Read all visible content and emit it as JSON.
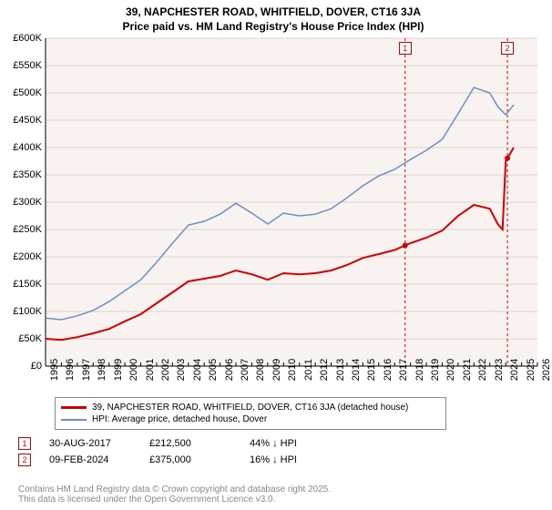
{
  "title_line1": "39, NAPCHESTER ROAD, WHITFIELD, DOVER, CT16 3JA",
  "title_line2": "Price paid vs. HM Land Registry's House Price Index (HPI)",
  "chart": {
    "type": "line",
    "background_color": "#f8f3f0",
    "grid_color": "#dcd4ce",
    "axis_color": "#000000",
    "x_years": [
      1995,
      1996,
      1997,
      1998,
      1999,
      2000,
      2001,
      2002,
      2003,
      2004,
      2005,
      2006,
      2007,
      2008,
      2009,
      2010,
      2011,
      2012,
      2013,
      2014,
      2015,
      2016,
      2017,
      2018,
      2019,
      2020,
      2021,
      2022,
      2023,
      2024,
      2025,
      2026
    ],
    "y_min": 0,
    "y_max": 600000,
    "y_step": 50000,
    "y_labels": [
      "£0",
      "£50K",
      "£100K",
      "£150K",
      "£200K",
      "£250K",
      "£300K",
      "£350K",
      "£400K",
      "£450K",
      "£500K",
      "£550K",
      "£600K"
    ],
    "series": [
      {
        "name": "property",
        "label": "39, NAPCHESTER ROAD, WHITFIELD, DOVER, CT16 3JA (detached house)",
        "color": "#d40000",
        "width": 2,
        "points": [
          [
            1995,
            50000
          ],
          [
            1996,
            48000
          ],
          [
            1997,
            53000
          ],
          [
            1998,
            60000
          ],
          [
            1999,
            68000
          ],
          [
            2000,
            82000
          ],
          [
            2001,
            95000
          ],
          [
            2002,
            115000
          ],
          [
            2003,
            135000
          ],
          [
            2004,
            155000
          ],
          [
            2005,
            160000
          ],
          [
            2006,
            165000
          ],
          [
            2007,
            175000
          ],
          [
            2008,
            168000
          ],
          [
            2009,
            158000
          ],
          [
            2010,
            170000
          ],
          [
            2011,
            168000
          ],
          [
            2012,
            170000
          ],
          [
            2013,
            175000
          ],
          [
            2014,
            185000
          ],
          [
            2015,
            198000
          ],
          [
            2016,
            205000
          ],
          [
            2017,
            212500
          ],
          [
            2018,
            225000
          ],
          [
            2019,
            235000
          ],
          [
            2020,
            248000
          ],
          [
            2021,
            275000
          ],
          [
            2022,
            295000
          ],
          [
            2023,
            288000
          ],
          [
            2023.5,
            260000
          ],
          [
            2023.8,
            250000
          ],
          [
            2024,
            375000
          ],
          [
            2024.5,
            400000
          ]
        ]
      },
      {
        "name": "hpi",
        "label": "HPI: Average price, detached house, Dover",
        "color": "#6c8fc7",
        "width": 1.5,
        "points": [
          [
            1995,
            88000
          ],
          [
            1996,
            85000
          ],
          [
            1997,
            92000
          ],
          [
            1998,
            102000
          ],
          [
            1999,
            118000
          ],
          [
            2000,
            138000
          ],
          [
            2001,
            158000
          ],
          [
            2002,
            190000
          ],
          [
            2003,
            225000
          ],
          [
            2004,
            258000
          ],
          [
            2005,
            265000
          ],
          [
            2006,
            278000
          ],
          [
            2007,
            298000
          ],
          [
            2008,
            280000
          ],
          [
            2009,
            260000
          ],
          [
            2010,
            280000
          ],
          [
            2011,
            275000
          ],
          [
            2012,
            278000
          ],
          [
            2013,
            288000
          ],
          [
            2014,
            308000
          ],
          [
            2015,
            330000
          ],
          [
            2016,
            348000
          ],
          [
            2017,
            360000
          ],
          [
            2018,
            378000
          ],
          [
            2019,
            395000
          ],
          [
            2020,
            415000
          ],
          [
            2021,
            462000
          ],
          [
            2022,
            510000
          ],
          [
            2023,
            500000
          ],
          [
            2023.5,
            475000
          ],
          [
            2024,
            460000
          ],
          [
            2024.5,
            478000
          ]
        ]
      }
    ],
    "markers": [
      {
        "num": "1",
        "year": 2017.66,
        "color": "#d40000"
      },
      {
        "num": "2",
        "year": 2024.11,
        "color": "#d40000"
      }
    ]
  },
  "legend": {
    "series1_color": "#d40000",
    "series1_label": "39, NAPCHESTER ROAD, WHITFIELD, DOVER, CT16 3JA (detached house)",
    "series2_color": "#6c8fc7",
    "series2_label": "HPI: Average price, detached house, Dover"
  },
  "sales": [
    {
      "num": "1",
      "color": "#d40000",
      "date": "30-AUG-2017",
      "price": "£212,500",
      "pct": "44% ↓ HPI"
    },
    {
      "num": "2",
      "color": "#d40000",
      "date": "09-FEB-2024",
      "price": "£375,000",
      "pct": "16% ↓ HPI"
    }
  ],
  "footer_line1": "Contains HM Land Registry data © Crown copyright and database right 2025.",
  "footer_line2": "This data is licensed under the Open Government Licence v3.0."
}
